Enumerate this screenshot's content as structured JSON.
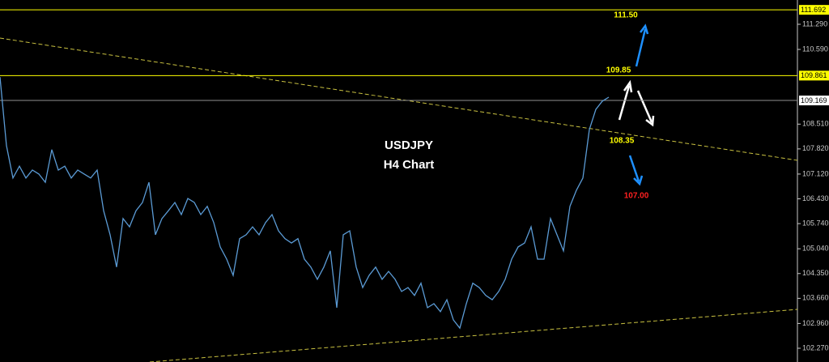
{
  "chart_data": {
    "type": "line",
    "title": "USDJPY",
    "subtitle": "H4 Chart",
    "color": "#5b9bd5",
    "values": [
      109.82,
      107.91,
      107.01,
      107.34,
      107.01,
      107.23,
      107.12,
      106.89,
      107.8,
      107.23,
      107.34,
      107.01,
      107.23,
      107.12,
      107.01,
      107.23,
      106.1,
      105.43,
      104.53,
      105.88,
      105.65,
      106.1,
      106.33,
      106.89,
      105.43,
      105.88,
      106.1,
      106.33,
      105.99,
      106.44,
      106.33,
      105.99,
      106.22,
      105.77,
      105.09,
      104.75,
      104.3,
      105.32,
      105.43,
      105.65,
      105.43,
      105.77,
      105.99,
      105.54,
      105.32,
      105.2,
      105.32,
      104.75,
      104.53,
      104.19,
      104.53,
      104.98,
      103.4,
      105.43,
      105.54,
      104.53,
      103.96,
      104.3,
      104.53,
      104.19,
      104.41,
      104.19,
      103.85,
      103.96,
      103.74,
      104.08,
      103.4,
      103.51,
      103.29,
      103.62,
      103.06,
      102.83,
      103.51,
      104.08,
      103.96,
      103.74,
      103.62,
      103.85,
      104.19,
      104.75,
      105.09,
      105.2,
      105.65,
      104.75,
      104.75,
      105.88,
      105.43,
      104.98,
      106.22,
      106.67,
      107.01,
      108.36,
      108.92,
      109.15,
      109.26
    ],
    "ylim": [
      101.887,
      111.966
    ],
    "yticks": [
      {
        "value": 111.29,
        "label": "111.290"
      },
      {
        "value": 110.59,
        "label": "110.590"
      },
      {
        "value": 108.51,
        "label": "108.510"
      },
      {
        "value": 107.82,
        "label": "107.820"
      },
      {
        "value": 107.12,
        "label": "107.120"
      },
      {
        "value": 106.43,
        "label": "106.430"
      },
      {
        "value": 105.74,
        "label": "105.740"
      },
      {
        "value": 105.04,
        "label": "105.040"
      },
      {
        "value": 104.35,
        "label": "104.350"
      },
      {
        "value": 103.66,
        "label": "103.660"
      },
      {
        "value": 102.96,
        "label": "102.960"
      },
      {
        "value": 102.27,
        "label": "102.270"
      }
    ],
    "levels": [
      {
        "price": 111.692,
        "color": "#ffff00"
      },
      {
        "price": 109.861,
        "color": "#ffff00"
      },
      {
        "price": 109.169,
        "color": "#ffffff"
      }
    ],
    "annotations": [
      "111.50",
      "109.85",
      "108.35",
      "107.00"
    ]
  }
}
